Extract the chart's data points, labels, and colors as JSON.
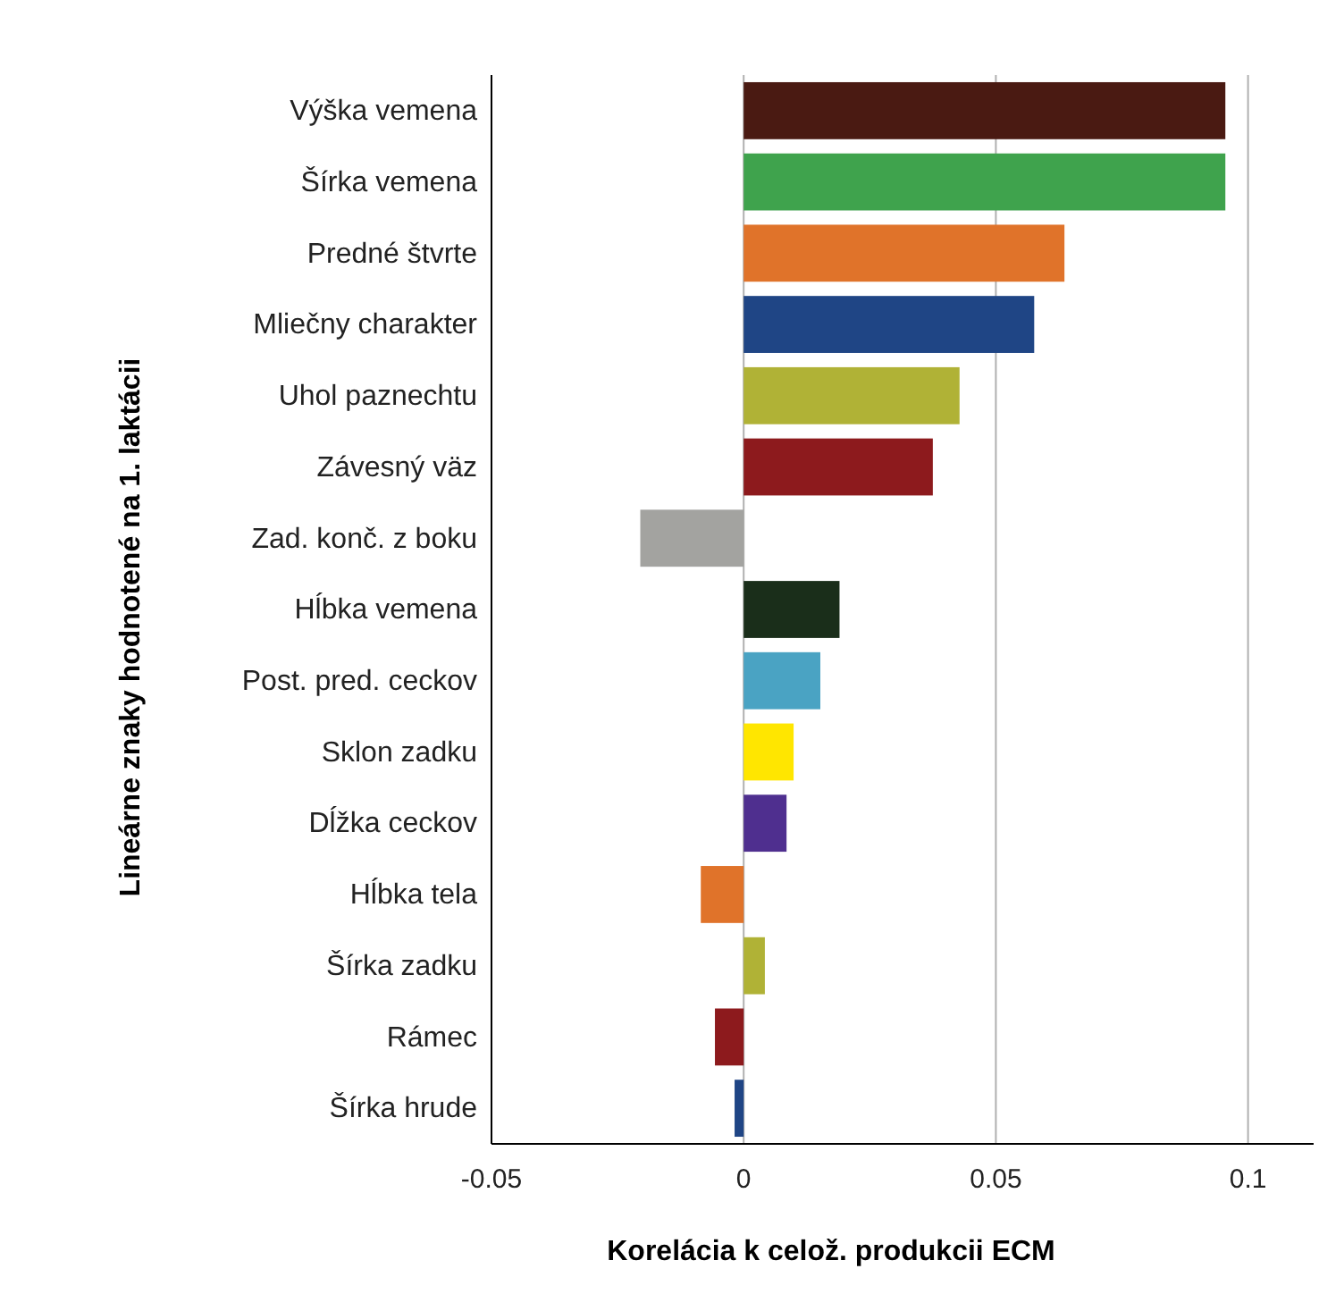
{
  "chart_data": {
    "type": "bar",
    "orientation": "horizontal",
    "categories": [
      "Výška vemena",
      "Šírka vemena",
      "Predné štvrte",
      "Mliečny charakter",
      "Uhol paznechtu",
      "Závesný väz",
      "Zad. konč. z boku",
      "Hĺbka vemena",
      "Post. pred. ceckov",
      "Sklon zadku",
      "Dĺžka ceckov",
      "Hĺbka tela",
      "Šírka zadku",
      "Rámec",
      "Šírka hrude"
    ],
    "values": [
      0.0955,
      0.0955,
      0.0636,
      0.0576,
      0.0428,
      0.0375,
      -0.0205,
      0.019,
      0.0152,
      0.0099,
      0.0085,
      -0.0085,
      0.0042,
      -0.0057,
      -0.0018
    ],
    "colors": [
      "#4a1a12",
      "#3fa34d",
      "#e0732a",
      "#1f4585",
      "#b0b236",
      "#8d1a1d",
      "#a3a3a0",
      "#1a2e1a",
      "#4aa3c3",
      "#ffe600",
      "#4f2f8f",
      "#e0732a",
      "#b0b236",
      "#8d1a1d",
      "#1f4585"
    ],
    "xlim": [
      -0.05,
      0.113
    ],
    "xticks": [
      -0.05,
      0,
      0.05,
      0.1
    ],
    "grid": "x",
    "xlabel": "Korelácia k celož. produkcii ECM",
    "ylabel": "Lineárne znaky hodnotené na 1. laktácii"
  }
}
